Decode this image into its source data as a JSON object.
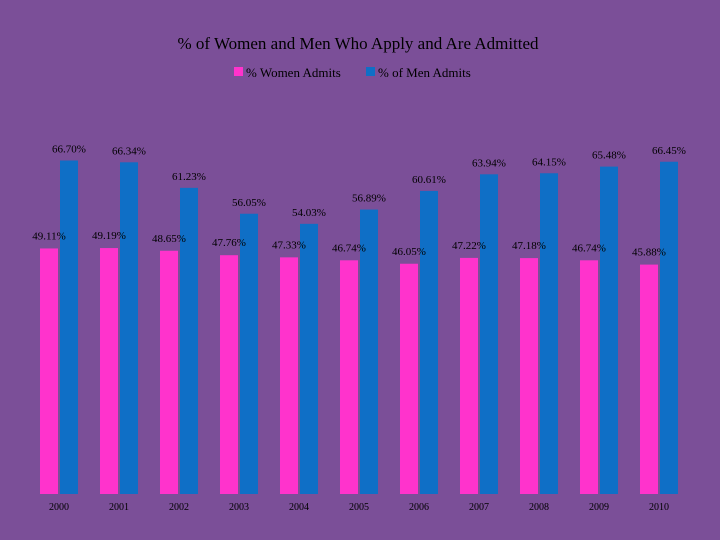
{
  "chart_data": {
    "type": "bar",
    "title": "% of Women and Men Who Apply and Are Admitted",
    "xlabel": "",
    "ylabel": "",
    "ylim": [
      0,
      70
    ],
    "grid": false,
    "legend_position": "top-center",
    "categories": [
      "2000",
      "2001",
      "2002",
      "2003",
      "2004",
      "2005",
      "2006",
      "2007",
      "2008",
      "2009",
      "2010"
    ],
    "series": [
      {
        "name": "% Women Admits",
        "color": "#ff33cc",
        "values": [
          49.11,
          49.19,
          48.65,
          47.76,
          47.33,
          46.74,
          46.05,
          47.22,
          47.18,
          46.74,
          45.88
        ],
        "labels": [
          "49.11%",
          "49.19%",
          "48.65%",
          "47.76%",
          "47.33%",
          "46.74%",
          "46.05%",
          "47.22%",
          "47.18%",
          "46.74%",
          "45.88%"
        ]
      },
      {
        "name": "% of Men Admits",
        "color": "#0f6fc6",
        "values": [
          66.7,
          66.34,
          61.23,
          56.05,
          54.03,
          56.89,
          60.61,
          63.94,
          64.15,
          65.48,
          66.45
        ],
        "labels": [
          "66.70%",
          "66.34%",
          "61.23%",
          "56.05%",
          "54.03%",
          "56.89%",
          "60.61%",
          "63.94%",
          "64.15%",
          "65.48%",
          "66.45%"
        ]
      }
    ]
  }
}
